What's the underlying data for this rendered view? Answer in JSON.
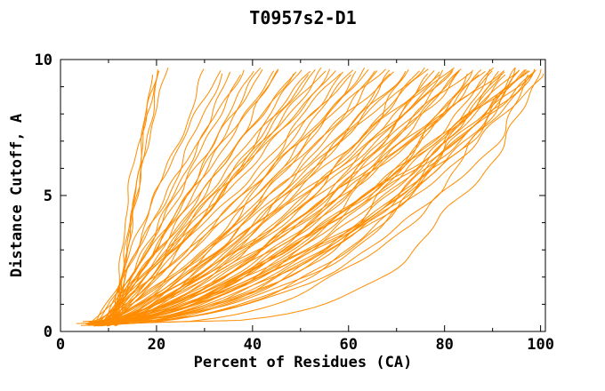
{
  "chart_data": {
    "type": "line",
    "title": "T0957s2-D1",
    "xlabel": "Percent of Residues (CA)",
    "ylabel": "Distance Cutoff, A",
    "xlim": [
      0,
      101
    ],
    "ylim": [
      0,
      10
    ],
    "x_major_ticks": [
      0,
      20,
      40,
      60,
      80,
      100
    ],
    "x_minor_step": 10,
    "y_major_ticks": [
      0,
      5,
      10
    ],
    "y_minor_step": 1,
    "grid": false,
    "legend": "none",
    "line_color": "#ff8c00",
    "axis_color": "#000000",
    "background_color": "#ffffff",
    "series_note": "~86 unlabeled per-model accuracy curves, all drawn in the same orange: x = percent of CA residues fitting under distance cutoff y (Angstroms). Each curve is estimated from the plot as [x_at_bottom(y~0.3), x_at_top(y~9.7), shape_exponent]; x(y) = s + (e-s)*((y-y0)/(ytop-y0))^p with small wander.",
    "curves": [
      [
        11.0,
        19.2,
        1.3
      ],
      [
        11.8,
        20.0,
        1.25
      ],
      [
        12.4,
        20.8,
        1.35
      ],
      [
        11.4,
        21.8,
        1.22
      ],
      [
        12.0,
        20.4,
        1.28
      ],
      [
        10.0,
        30.5,
        1.1
      ],
      [
        9.5,
        33.0,
        1.15
      ],
      [
        8.0,
        34.5,
        0.95
      ],
      [
        9.2,
        36.0,
        1.05
      ],
      [
        7.5,
        37.5,
        0.9
      ],
      [
        10.5,
        38.5,
        1.1
      ],
      [
        8.8,
        40.0,
        0.98
      ],
      [
        7.0,
        41.5,
        0.85
      ],
      [
        9.8,
        42.5,
        1.02
      ],
      [
        8.2,
        44.0,
        0.92
      ],
      [
        10.2,
        45.5,
        1.08
      ],
      [
        7.8,
        46.5,
        0.88
      ],
      [
        9.0,
        48.0,
        0.96
      ],
      [
        8.5,
        49.5,
        1.0
      ],
      [
        7.2,
        50.5,
        0.84
      ],
      [
        10.8,
        51.5,
        1.06
      ],
      [
        8.0,
        52.5,
        0.9
      ],
      [
        9.5,
        53.5,
        0.97
      ],
      [
        7.6,
        54.5,
        0.86
      ],
      [
        11.2,
        55.5,
        1.04
      ],
      [
        8.4,
        56.5,
        0.93
      ],
      [
        9.1,
        57.5,
        0.99
      ],
      [
        6.8,
        58.5,
        0.78
      ],
      [
        9.4,
        59.5,
        0.92
      ],
      [
        7.4,
        60.5,
        0.7
      ],
      [
        10.0,
        61.5,
        0.95
      ],
      [
        8.6,
        62.5,
        0.82
      ],
      [
        6.5,
        63.5,
        0.66
      ],
      [
        9.7,
        64.5,
        0.88
      ],
      [
        7.9,
        65.5,
        0.74
      ],
      [
        10.4,
        66.5,
        0.9
      ],
      [
        8.1,
        67.5,
        0.72
      ],
      [
        6.9,
        68.5,
        0.62
      ],
      [
        9.3,
        69.5,
        0.85
      ],
      [
        7.7,
        70.5,
        0.68
      ],
      [
        10.6,
        71.5,
        0.87
      ],
      [
        8.3,
        72.5,
        0.73
      ],
      [
        6.6,
        73.5,
        0.58
      ],
      [
        9.6,
        74.5,
        0.8
      ],
      [
        7.3,
        75.5,
        0.64
      ],
      [
        10.1,
        76.5,
        0.83
      ],
      [
        8.7,
        77.5,
        0.7
      ],
      [
        6.4,
        78.5,
        0.55
      ],
      [
        9.9,
        79.2,
        0.78
      ],
      [
        7.1,
        79.8,
        0.61
      ],
      [
        8.9,
        80.4,
        0.75
      ],
      [
        10.3,
        81.0,
        0.81
      ],
      [
        6.7,
        81.6,
        0.57
      ],
      [
        9.0,
        82.2,
        0.72
      ],
      [
        7.5,
        82.8,
        0.63
      ],
      [
        6.2,
        83.5,
        0.52
      ],
      [
        8.8,
        84.2,
        0.68
      ],
      [
        7.0,
        85.0,
        0.56
      ],
      [
        9.2,
        85.8,
        0.72
      ],
      [
        5.8,
        86.5,
        0.48
      ],
      [
        8.4,
        87.2,
        0.64
      ],
      [
        6.8,
        88.0,
        0.53
      ],
      [
        9.5,
        88.8,
        0.7
      ],
      [
        5.6,
        89.5,
        0.45
      ],
      [
        8.0,
        90.2,
        0.6
      ],
      [
        7.2,
        91.0,
        0.55
      ],
      [
        9.8,
        91.8,
        0.74
      ],
      [
        5.4,
        92.5,
        0.42
      ],
      [
        8.6,
        93.2,
        0.62
      ],
      [
        6.6,
        94.0,
        0.5
      ],
      [
        9.1,
        94.8,
        0.66
      ],
      [
        5.2,
        95.5,
        0.4
      ],
      [
        7.8,
        96.2,
        0.58
      ],
      [
        6.4,
        97.0,
        0.47
      ],
      [
        8.2,
        97.8,
        0.61
      ],
      [
        5.0,
        98.5,
        0.38
      ],
      [
        7.6,
        99.0,
        0.54
      ],
      [
        6.0,
        99.5,
        0.44
      ],
      [
        8.5,
        99.8,
        0.59
      ],
      [
        4.8,
        100.0,
        0.35
      ],
      [
        7.4,
        96.8,
        0.51
      ],
      [
        6.1,
        92.8,
        0.46
      ],
      [
        9.4,
        97.4,
        0.69
      ],
      [
        5.5,
        94.4,
        0.41
      ],
      [
        8.1,
        98.2,
        0.57
      ],
      [
        7.0,
        99.5,
        0.26
      ]
    ]
  }
}
